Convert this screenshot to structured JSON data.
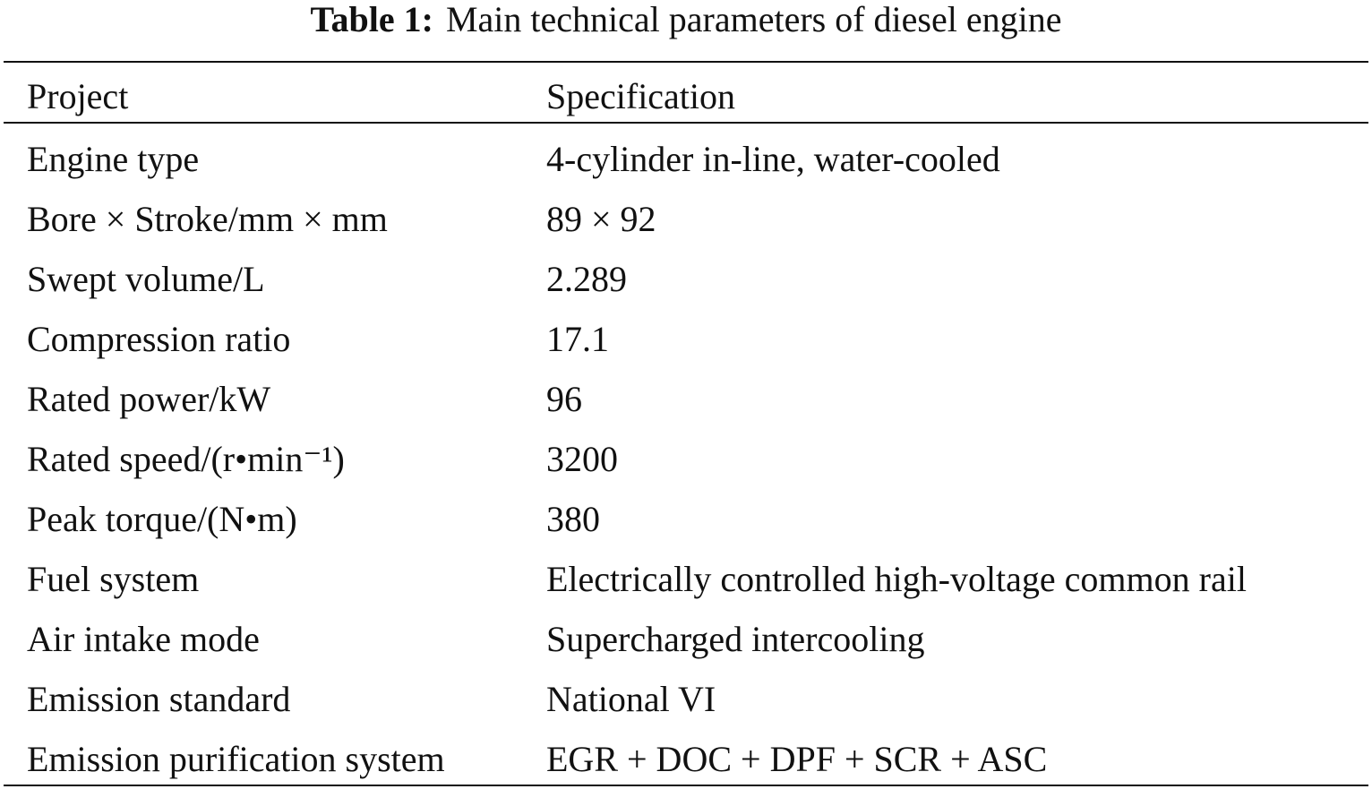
{
  "caption": {
    "label": "Table 1:",
    "title": "Main technical parameters of diesel engine"
  },
  "table": {
    "header": [
      "Project",
      "Specification"
    ],
    "rows": [
      [
        "Engine type",
        "4-cylinder in-line, water-cooled"
      ],
      [
        "Bore × Stroke/mm × mm",
        "89 × 92"
      ],
      [
        "Swept volume/L",
        "2.289"
      ],
      [
        "Compression ratio",
        "17.1"
      ],
      [
        "Rated power/kW",
        "96"
      ],
      [
        "Rated speed/(r•min⁻¹)",
        "3200"
      ],
      [
        "Peak torque/(N•m)",
        "380"
      ],
      [
        "Fuel system",
        "Electrically controlled high-voltage common rail"
      ],
      [
        "Air intake mode",
        "Supercharged intercooling"
      ],
      [
        "Emission standard",
        "National VI"
      ],
      [
        "Emission purification system",
        "EGR + DOC + DPF + SCR + ASC"
      ]
    ]
  }
}
